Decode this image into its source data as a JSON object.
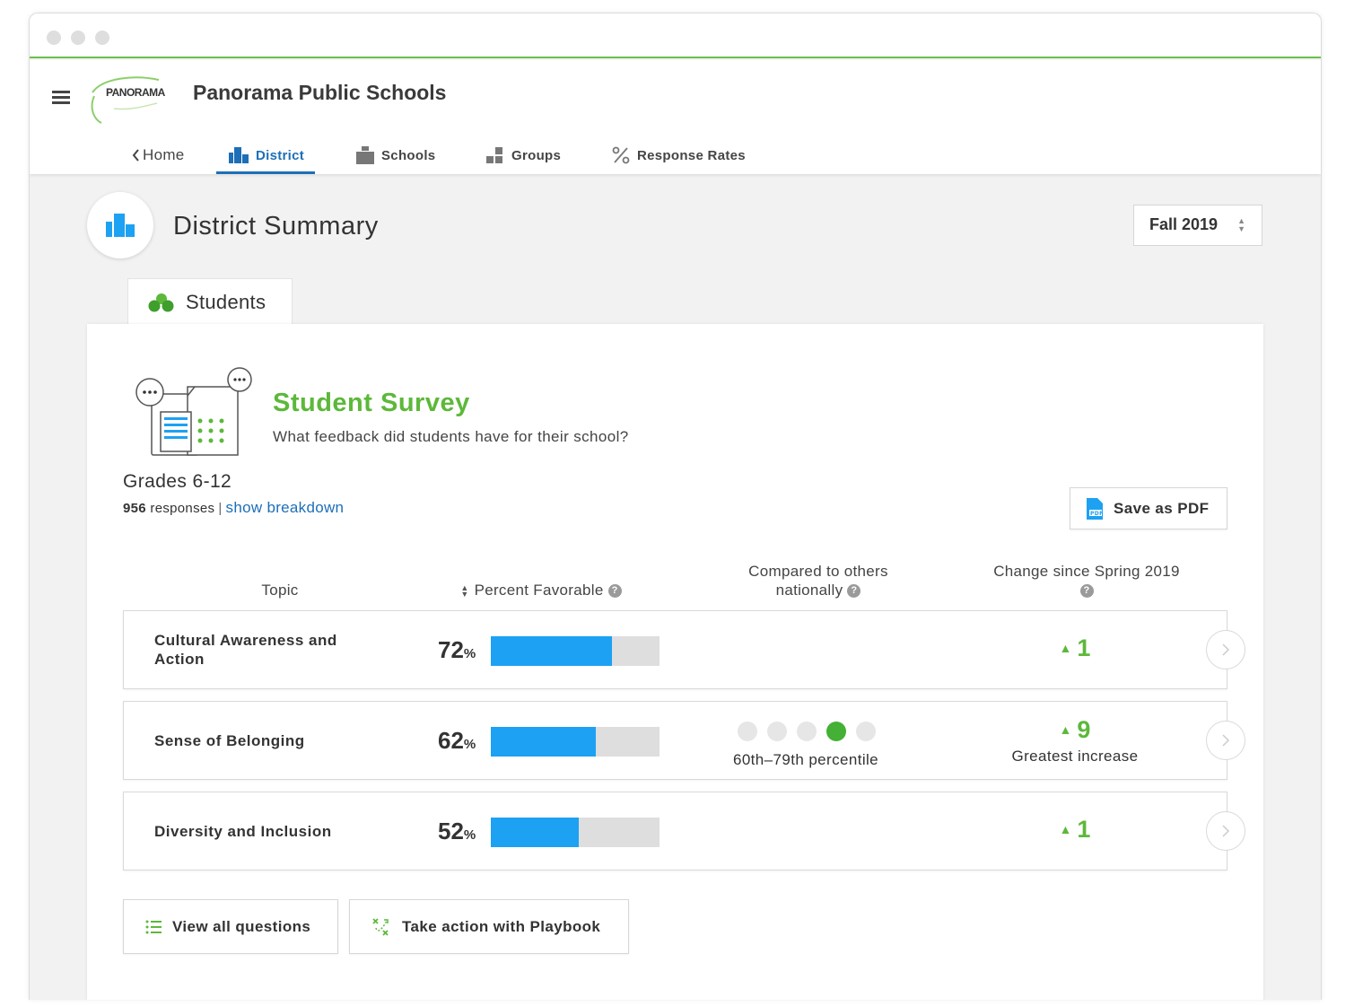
{
  "app": {
    "title": "Panorama Public Schools",
    "logo_text": "PANORAMA",
    "accent_color": "#6cc04a",
    "link_color": "#1d6fb8"
  },
  "nav": {
    "home": "Home",
    "items": [
      {
        "label": "District",
        "icon": "district-icon",
        "active": true
      },
      {
        "label": "Schools",
        "icon": "schools-icon",
        "active": false
      },
      {
        "label": "Groups",
        "icon": "groups-icon",
        "active": false
      },
      {
        "label": "Response Rates",
        "icon": "percent-icon",
        "active": false
      }
    ]
  },
  "summary": {
    "title": "District Summary",
    "season": "Fall 2019"
  },
  "tab": {
    "label": "Students"
  },
  "survey": {
    "title": "Student Survey",
    "subtitle": "What feedback did students have for their school?",
    "grades": "Grades 6-12",
    "response_count": "956",
    "responses_label": "responses",
    "separator": "|",
    "breakdown_link": "show breakdown",
    "save_pdf": "Save as PDF"
  },
  "table": {
    "headers": {
      "topic": "Topic",
      "percent": "Percent Favorable",
      "compared_line1": "Compared to others",
      "compared_line2": "nationally",
      "change": "Change since Spring 2019"
    },
    "rows": [
      {
        "topic": "Cultural Awareness and Action",
        "percent": "72",
        "percent_value": 72,
        "change": "1",
        "change_note": "",
        "percentile": "",
        "percentile_dot": null
      },
      {
        "topic": "Sense of Belonging",
        "percent": "62",
        "percent_value": 62,
        "change": "9",
        "change_note": "Greatest increase",
        "percentile": "60th–79th percentile",
        "percentile_dot": 4
      },
      {
        "topic": "Diversity and Inclusion",
        "percent": "52",
        "percent_value": 52,
        "change": "1",
        "change_note": "",
        "percentile": "",
        "percentile_dot": null
      }
    ],
    "percent_suffix": "%",
    "bar_color": "#1da1f2",
    "positive_color": "#5db83a"
  },
  "actions": {
    "view_questions": "View all questions",
    "playbook": "Take action with Playbook"
  }
}
